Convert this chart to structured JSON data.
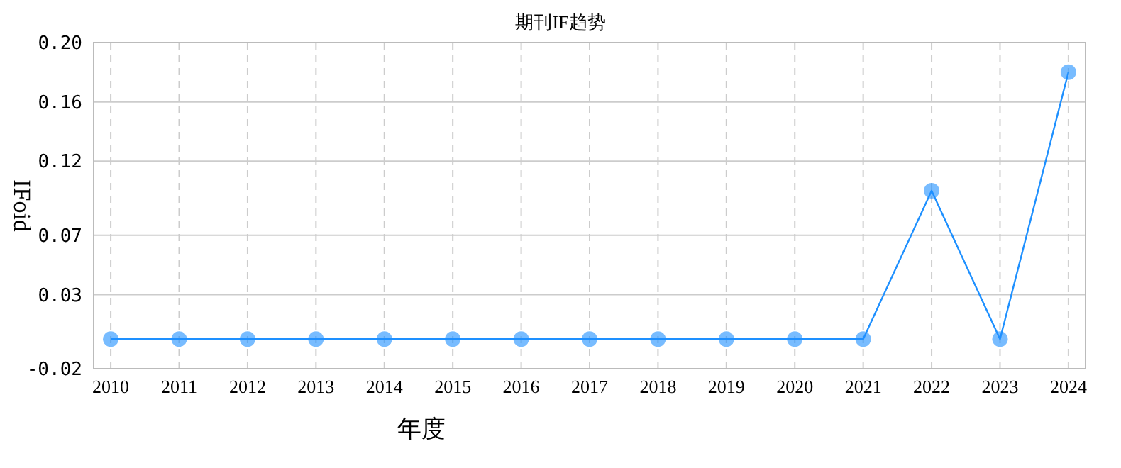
{
  "chart_data": {
    "type": "line",
    "title": "期刊IF趋势",
    "xlabel": "年度",
    "ylabel": "IFoid",
    "categories": [
      "2010",
      "2011",
      "2012",
      "2013",
      "2014",
      "2015",
      "2016",
      "2017",
      "2018",
      "2019",
      "2020",
      "2021",
      "2022",
      "2023",
      "2024"
    ],
    "series": [
      {
        "color": "#1e90ff",
        "values": [
          0,
          0,
          0,
          0,
          0,
          0,
          0,
          0,
          0,
          0,
          0,
          0,
          0.1,
          0,
          0.18
        ]
      }
    ],
    "ylim": [
      -0.02,
      0.2
    ],
    "yticks": [
      {
        "value": -0.02,
        "label": "-0.02"
      },
      {
        "value": 0.03,
        "label": "0.03"
      },
      {
        "value": 0.07,
        "label": "0.07"
      },
      {
        "value": 0.12,
        "label": "0.12"
      },
      {
        "value": 0.16,
        "label": "0.16"
      },
      {
        "value": 0.2,
        "label": "0.20"
      }
    ],
    "grid": true,
    "marker": "circle"
  }
}
